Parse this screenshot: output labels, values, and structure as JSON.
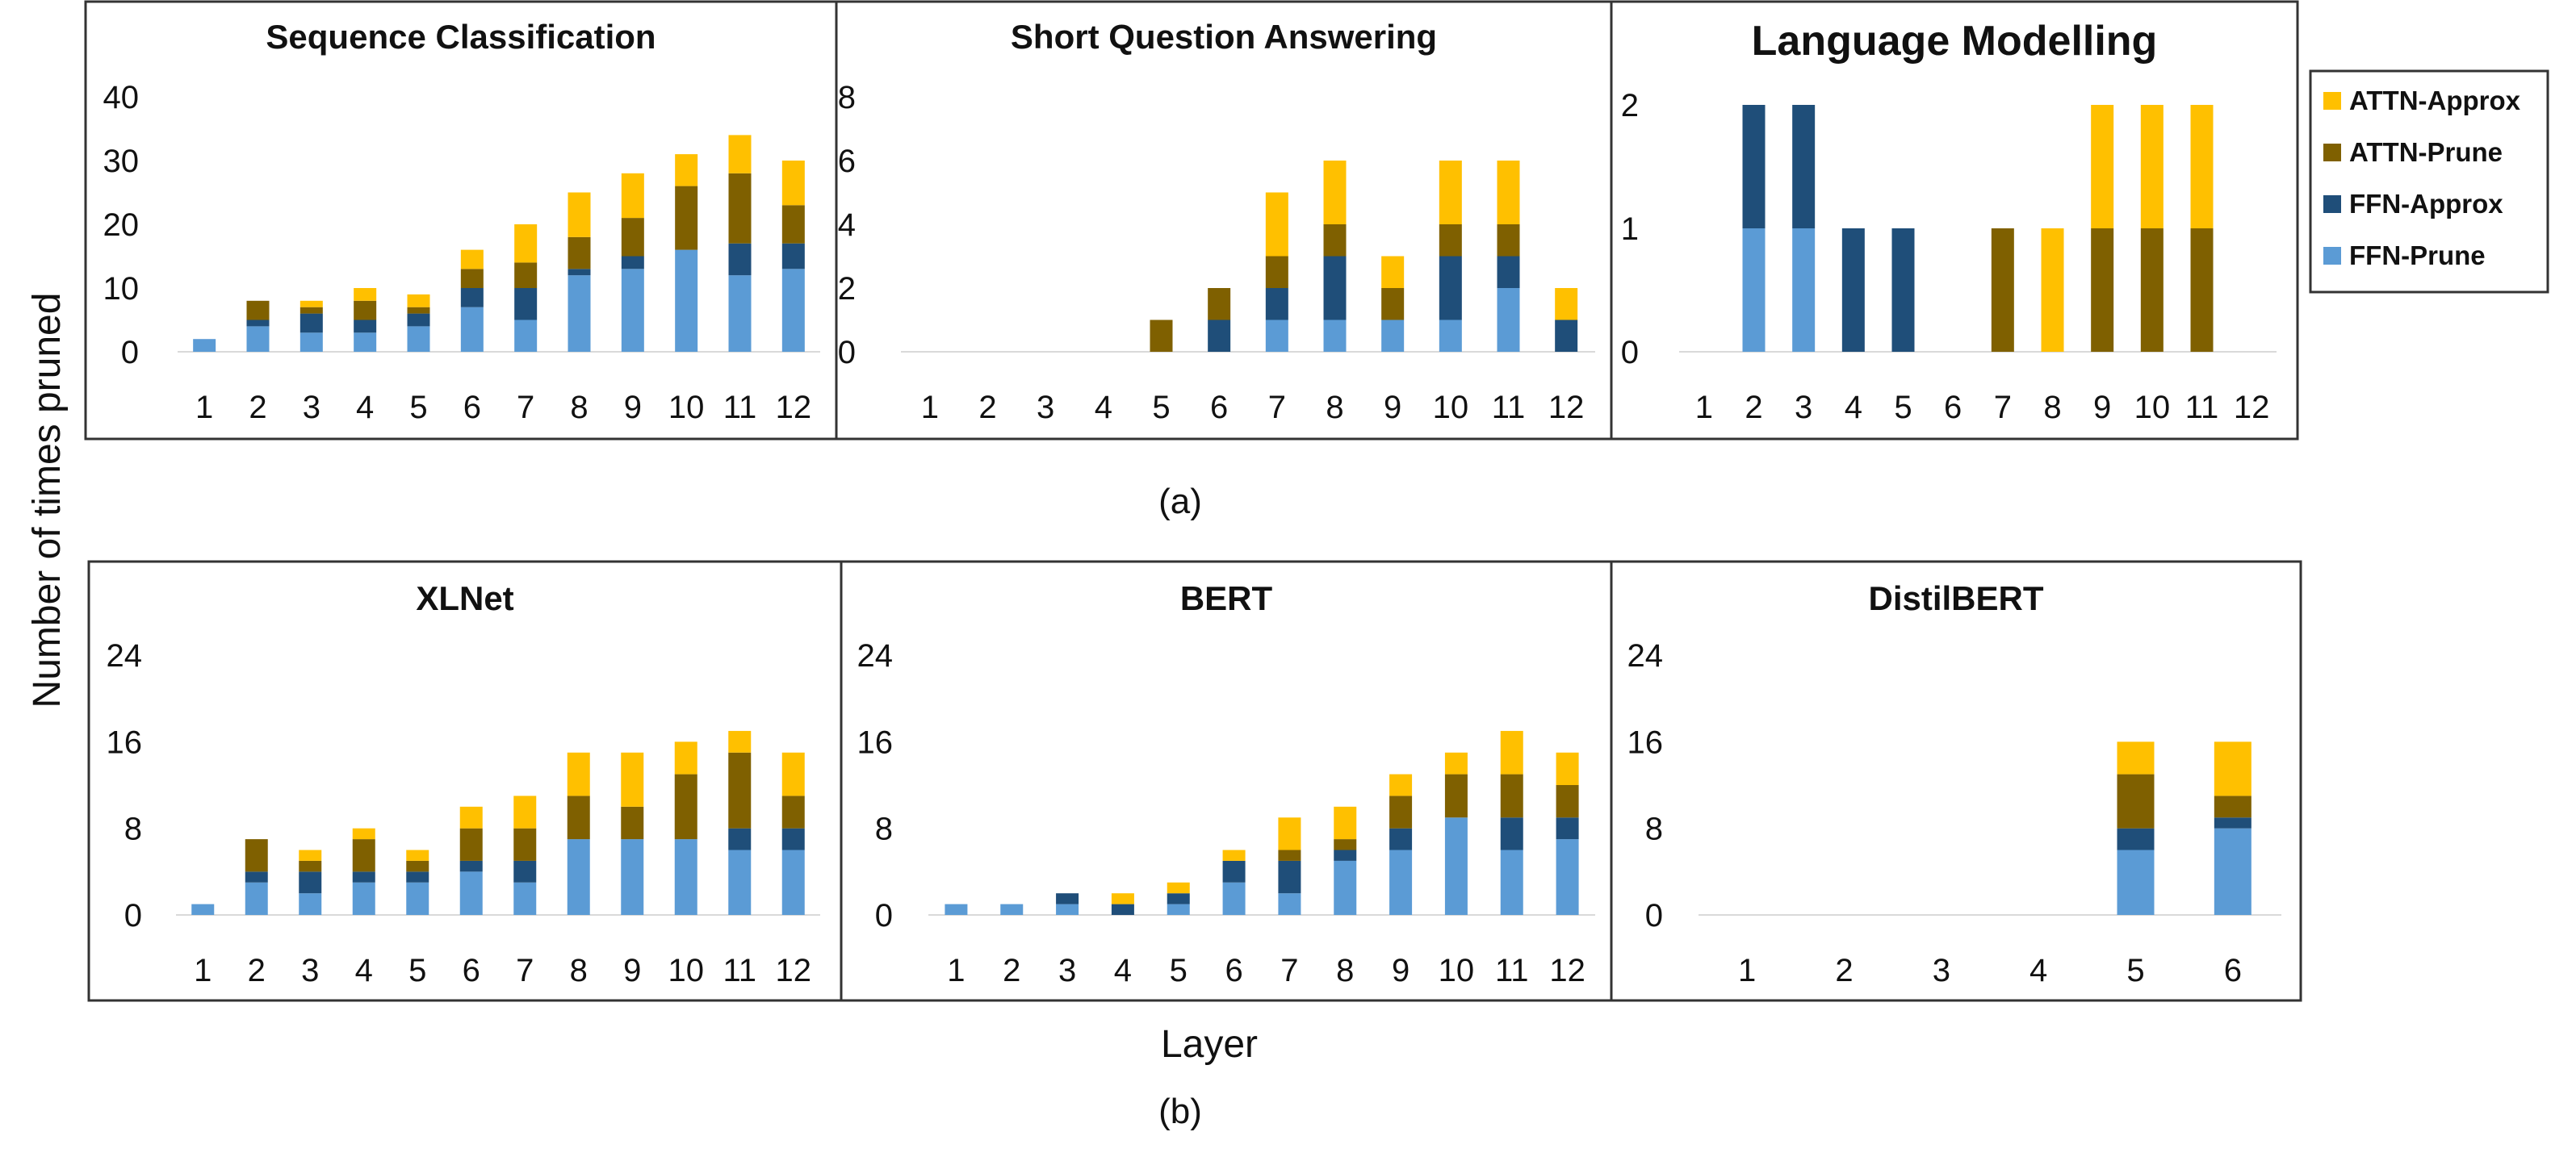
{
  "colors": {
    "ATTN-Approx": "#FFC000",
    "ATTN-Prune": "#7F6000",
    "FFN-Approx": "#1F4E79",
    "FFN-Prune": "#5B9BD5",
    "frame": "#333333",
    "gridline": "#D9D9D9"
  },
  "figure": {
    "ylabel": "Number of times pruned",
    "xlabel": "Layer",
    "sub_a": "(a)",
    "sub_b": "(b)"
  },
  "chart_data": [
    {
      "type": "bar",
      "stacked": true,
      "title": "Sequence Classification",
      "categories": [
        "1",
        "2",
        "3",
        "4",
        "5",
        "6",
        "7",
        "8",
        "9",
        "10",
        "11",
        "12"
      ],
      "yticks": [
        "0",
        "10",
        "20",
        "30",
        "40"
      ],
      "ylim": [
        0,
        40
      ],
      "series": [
        {
          "name": "FFN-Prune",
          "values": [
            2,
            4,
            3,
            3,
            4,
            7,
            5,
            12,
            13,
            16,
            12,
            13
          ]
        },
        {
          "name": "FFN-Approx",
          "values": [
            0,
            1,
            3,
            2,
            2,
            3,
            5,
            1,
            2,
            0,
            5,
            4
          ]
        },
        {
          "name": "ATTN-Prune",
          "values": [
            0,
            3,
            1,
            3,
            1,
            3,
            4,
            5,
            6,
            10,
            11,
            6
          ]
        },
        {
          "name": "ATTN-Approx",
          "values": [
            0,
            0,
            1,
            2,
            2,
            3,
            6,
            7,
            7,
            5,
            6,
            7
          ]
        }
      ]
    },
    {
      "type": "bar",
      "stacked": true,
      "title": "Short Question Answering",
      "categories": [
        "1",
        "2",
        "3",
        "4",
        "5",
        "6",
        "7",
        "8",
        "9",
        "10",
        "11",
        "12"
      ],
      "yticks": [
        "0",
        "2",
        "4",
        "6",
        "8"
      ],
      "ylim": [
        0,
        8
      ],
      "series": [
        {
          "name": "FFN-Prune",
          "values": [
            0,
            0,
            0,
            0,
            0,
            0,
            1,
            1,
            1,
            1,
            2,
            0
          ]
        },
        {
          "name": "FFN-Approx",
          "values": [
            0,
            0,
            0,
            0,
            0,
            1,
            1,
            2,
            0,
            2,
            1,
            1
          ]
        },
        {
          "name": "ATTN-Prune",
          "values": [
            0,
            0,
            0,
            0,
            1,
            1,
            1,
            1,
            1,
            1,
            1,
            0
          ]
        },
        {
          "name": "ATTN-Approx",
          "values": [
            0,
            0,
            0,
            0,
            0,
            0,
            2,
            2,
            1,
            2,
            2,
            1
          ]
        }
      ]
    },
    {
      "type": "bar",
      "stacked": true,
      "title": "Language Modelling",
      "categories": [
        "1",
        "2",
        "3",
        "4",
        "5",
        "6",
        "7",
        "8",
        "9",
        "10",
        "11",
        "12"
      ],
      "yticks": [
        "0",
        "1",
        "2"
      ],
      "ylim": [
        0,
        2
      ],
      "series": [
        {
          "name": "FFN-Prune",
          "values": [
            0,
            1,
            1,
            0,
            0,
            0,
            0,
            0,
            0,
            0,
            0,
            0
          ]
        },
        {
          "name": "FFN-Approx",
          "values": [
            0,
            1,
            1,
            1,
            1,
            0,
            0,
            0,
            0,
            0,
            0,
            0
          ]
        },
        {
          "name": "ATTN-Prune",
          "values": [
            0,
            0,
            0,
            0,
            0,
            0,
            1,
            0,
            1,
            1,
            1,
            0
          ]
        },
        {
          "name": "ATTN-Approx",
          "values": [
            0,
            0,
            0,
            0,
            0,
            0,
            0,
            1,
            1,
            1,
            1,
            0
          ]
        }
      ]
    },
    {
      "type": "bar",
      "stacked": true,
      "title": "XLNet",
      "categories": [
        "1",
        "2",
        "3",
        "4",
        "5",
        "6",
        "7",
        "8",
        "9",
        "10",
        "11",
        "12"
      ],
      "yticks": [
        "0",
        "8",
        "16",
        "24"
      ],
      "ylim": [
        0,
        24
      ],
      "series": [
        {
          "name": "FFN-Prune",
          "values": [
            1,
            3,
            2,
            3,
            3,
            4,
            3,
            7,
            7,
            7,
            6,
            6
          ]
        },
        {
          "name": "FFN-Approx",
          "values": [
            0,
            1,
            2,
            1,
            1,
            1,
            2,
            0,
            0,
            0,
            2,
            2
          ]
        },
        {
          "name": "ATTN-Prune",
          "values": [
            0,
            3,
            1,
            3,
            1,
            3,
            3,
            4,
            3,
            6,
            7,
            3
          ]
        },
        {
          "name": "ATTN-Approx",
          "values": [
            0,
            0,
            1,
            1,
            1,
            2,
            3,
            4,
            5,
            3,
            2,
            4
          ]
        }
      ]
    },
    {
      "type": "bar",
      "stacked": true,
      "title": "BERT",
      "categories": [
        "1",
        "2",
        "3",
        "4",
        "5",
        "6",
        "7",
        "8",
        "9",
        "10",
        "11",
        "12"
      ],
      "yticks": [
        "0",
        "8",
        "16",
        "24"
      ],
      "ylim": [
        0,
        24
      ],
      "series": [
        {
          "name": "FFN-Prune",
          "values": [
            1,
            1,
            1,
            0,
            1,
            3,
            2,
            5,
            6,
            9,
            6,
            7
          ]
        },
        {
          "name": "FFN-Approx",
          "values": [
            0,
            0,
            1,
            1,
            1,
            2,
            3,
            1,
            2,
            0,
            3,
            2
          ]
        },
        {
          "name": "ATTN-Prune",
          "values": [
            0,
            0,
            0,
            0,
            0,
            0,
            1,
            1,
            3,
            4,
            4,
            3
          ]
        },
        {
          "name": "ATTN-Approx",
          "values": [
            0,
            0,
            0,
            1,
            1,
            1,
            3,
            3,
            2,
            2,
            4,
            3
          ]
        }
      ]
    },
    {
      "type": "bar",
      "stacked": true,
      "title": "DistilBERT",
      "categories": [
        "1",
        "2",
        "3",
        "4",
        "5",
        "6"
      ],
      "yticks": [
        "0",
        "8",
        "16",
        "24"
      ],
      "ylim": [
        0,
        24
      ],
      "series": [
        {
          "name": "FFN-Prune",
          "values": [
            0,
            0,
            0,
            0,
            6,
            8
          ]
        },
        {
          "name": "FFN-Approx",
          "values": [
            0,
            0,
            0,
            0,
            2,
            1
          ]
        },
        {
          "name": "ATTN-Prune",
          "values": [
            0,
            0,
            0,
            0,
            5,
            2
          ]
        },
        {
          "name": "ATTN-Approx",
          "values": [
            0,
            0,
            0,
            0,
            3,
            5
          ]
        }
      ]
    }
  ],
  "legend": {
    "items": [
      "ATTN-Approx",
      "ATTN-Prune",
      "FFN-Approx",
      "FFN-Prune"
    ]
  }
}
